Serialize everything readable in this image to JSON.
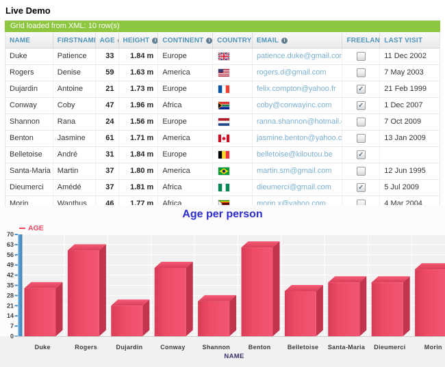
{
  "page": {
    "title": "Live Demo"
  },
  "grid": {
    "status": "Grid loaded from XML: 10 row(s)",
    "columns": [
      {
        "label": "NAME",
        "info": false
      },
      {
        "label": "FIRSTNAME",
        "info": false
      },
      {
        "label": "AGE",
        "info": true
      },
      {
        "label": "HEIGHT",
        "info": true
      },
      {
        "label": "CONTINENT",
        "info": true
      },
      {
        "label": "COUNTRY",
        "info": false
      },
      {
        "label": "EMAIL",
        "info": true
      },
      {
        "label": "FREELANCE",
        "info": true
      },
      {
        "label": "LAST VISIT",
        "info": false
      }
    ],
    "rows": [
      {
        "name": "Duke",
        "firstname": "Patience",
        "age": "33",
        "height": "1.84 m",
        "continent": "Europe",
        "country": "gb",
        "email": "patience.duke@gmail.com",
        "freelance": false,
        "last_visit": "11 Dec 2002"
      },
      {
        "name": "Rogers",
        "firstname": "Denise",
        "age": "59",
        "height": "1.63 m",
        "continent": "America",
        "country": "us",
        "email": "rogers.d@gmail.com",
        "freelance": false,
        "last_visit": "7 May 2003"
      },
      {
        "name": "Dujardin",
        "firstname": "Antoine",
        "age": "21",
        "height": "1.73 m",
        "continent": "Europe",
        "country": "fr",
        "email": "felix.compton@yahoo.fr",
        "freelance": true,
        "last_visit": "21 Feb 1999"
      },
      {
        "name": "Conway",
        "firstname": "Coby",
        "age": "47",
        "height": "1.96 m",
        "continent": "Africa",
        "country": "za",
        "email": "coby@conwayinc.com",
        "freelance": true,
        "last_visit": "1 Dec 2007"
      },
      {
        "name": "Shannon",
        "firstname": "Rana",
        "age": "24",
        "height": "1.56 m",
        "continent": "Europe",
        "country": "nl",
        "email": "ranna.shannon@hotmail.com",
        "freelance": false,
        "last_visit": "7 Oct 2009"
      },
      {
        "name": "Benton",
        "firstname": "Jasmine",
        "age": "61",
        "height": "1.71 m",
        "continent": "America",
        "country": "ca",
        "email": "jasmine.benton@yahoo.com",
        "freelance": false,
        "last_visit": "13 Jan 2009"
      },
      {
        "name": "Belletoise",
        "firstname": "André",
        "age": "31",
        "height": "1.84 m",
        "continent": "Europe",
        "country": "be",
        "email": "belletoise@kiloutou.be",
        "freelance": true,
        "last_visit": ""
      },
      {
        "name": "Santa-Maria",
        "firstname": "Martin",
        "age": "37",
        "height": "1.80 m",
        "continent": "America",
        "country": "br",
        "email": "martin.sm@gmail.com",
        "freelance": false,
        "last_visit": "12 Jun 1995"
      },
      {
        "name": "Dieumerci",
        "firstname": "Amédé",
        "age": "37",
        "height": "1.81 m",
        "continent": "Africa",
        "country": "ng",
        "email": "dieumerci@gmail.com",
        "freelance": true,
        "last_visit": "5 Jul 2009"
      },
      {
        "name": "Morin",
        "firstname": "Wanthus",
        "age": "46",
        "height": "1.77 m",
        "continent": "Africa",
        "country": "zw",
        "email": "morin.x@yahoo.com",
        "freelance": false,
        "last_visit": "4 Mar 2004"
      }
    ]
  },
  "chart_data": {
    "type": "bar",
    "title": "Age per person",
    "xlabel": "NAME",
    "ylabel": "",
    "legend": [
      {
        "label": "AGE",
        "color": "#ee4862"
      }
    ],
    "legend_position": "top-left",
    "categories": [
      "Duke",
      "Rogers",
      "Dujardin",
      "Conway",
      "Shannon",
      "Benton",
      "Belletoise",
      "Santa-Maria",
      "Dieumerci",
      "Morin"
    ],
    "values": [
      33,
      59,
      21,
      47,
      24,
      61,
      31,
      37,
      37,
      46
    ],
    "ylim": [
      0,
      70
    ],
    "yticks": [
      0,
      7,
      14,
      21,
      28,
      35,
      42,
      49,
      56,
      63,
      70
    ],
    "grid": true,
    "bar_color": "#ee4862"
  },
  "colors": {
    "status_bar": "#8dc63f",
    "header_text": "#4e93b9",
    "link": "#7aaece",
    "chart_title": "#2d2dd4",
    "series": "#ee4862",
    "axis_bar": "#4b93c7"
  }
}
